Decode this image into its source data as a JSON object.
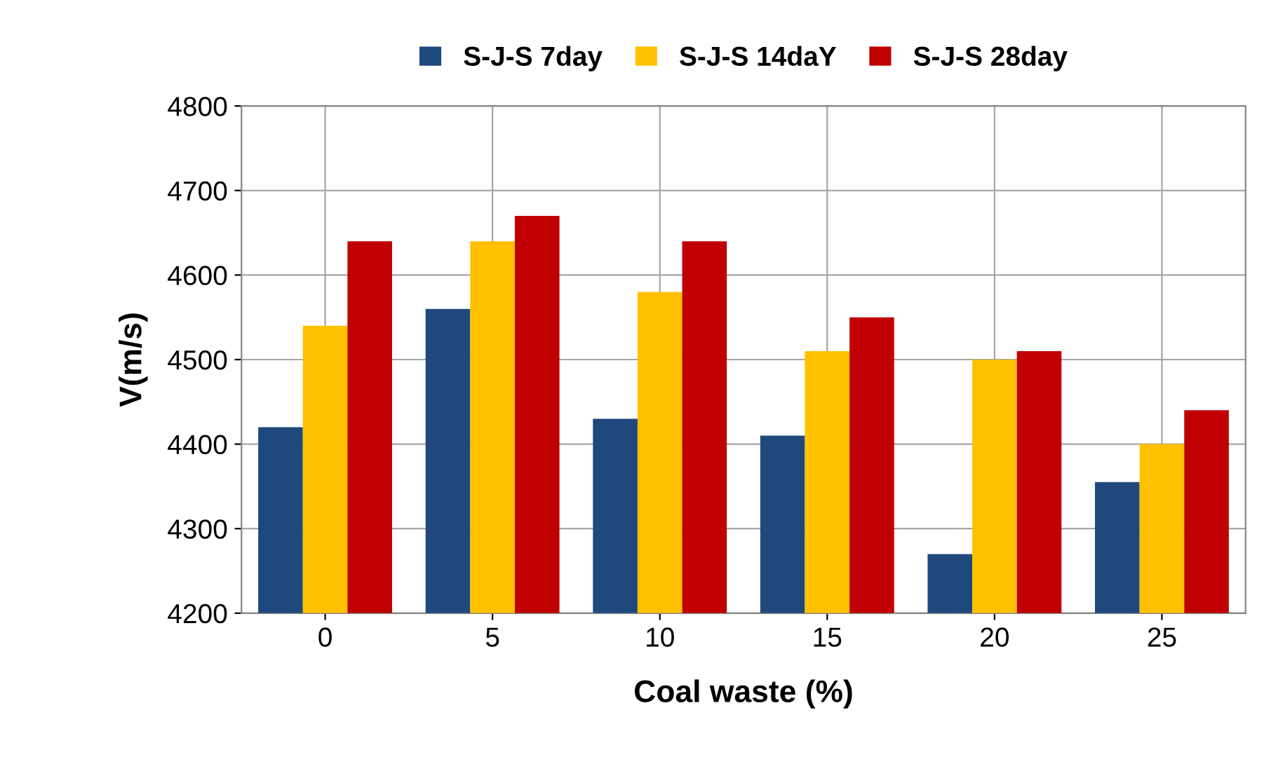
{
  "chart_data": {
    "type": "bar",
    "xlabel": "Coal waste (%)",
    "ylabel": "V(m/s)",
    "categories": [
      "0",
      "5",
      "10",
      "15",
      "20",
      "25"
    ],
    "series": [
      {
        "name": "S-J-S 7day",
        "color": "#1f497d",
        "values": [
          4420,
          4560,
          4430,
          4410,
          4270,
          4355
        ]
      },
      {
        "name": "S-J-S 14daY",
        "color": "#ffc000",
        "values": [
          4540,
          4640,
          4580,
          4510,
          4500,
          4400
        ]
      },
      {
        "name": "S-J-S 28day",
        "color": "#c00000",
        "values": [
          4640,
          4670,
          4640,
          4550,
          4510,
          4440
        ]
      }
    ],
    "ylim": [
      4200,
      4800
    ],
    "yticks": [
      4200,
      4300,
      4400,
      4500,
      4600,
      4700,
      4800
    ],
    "grid": true,
    "legend": "top"
  }
}
